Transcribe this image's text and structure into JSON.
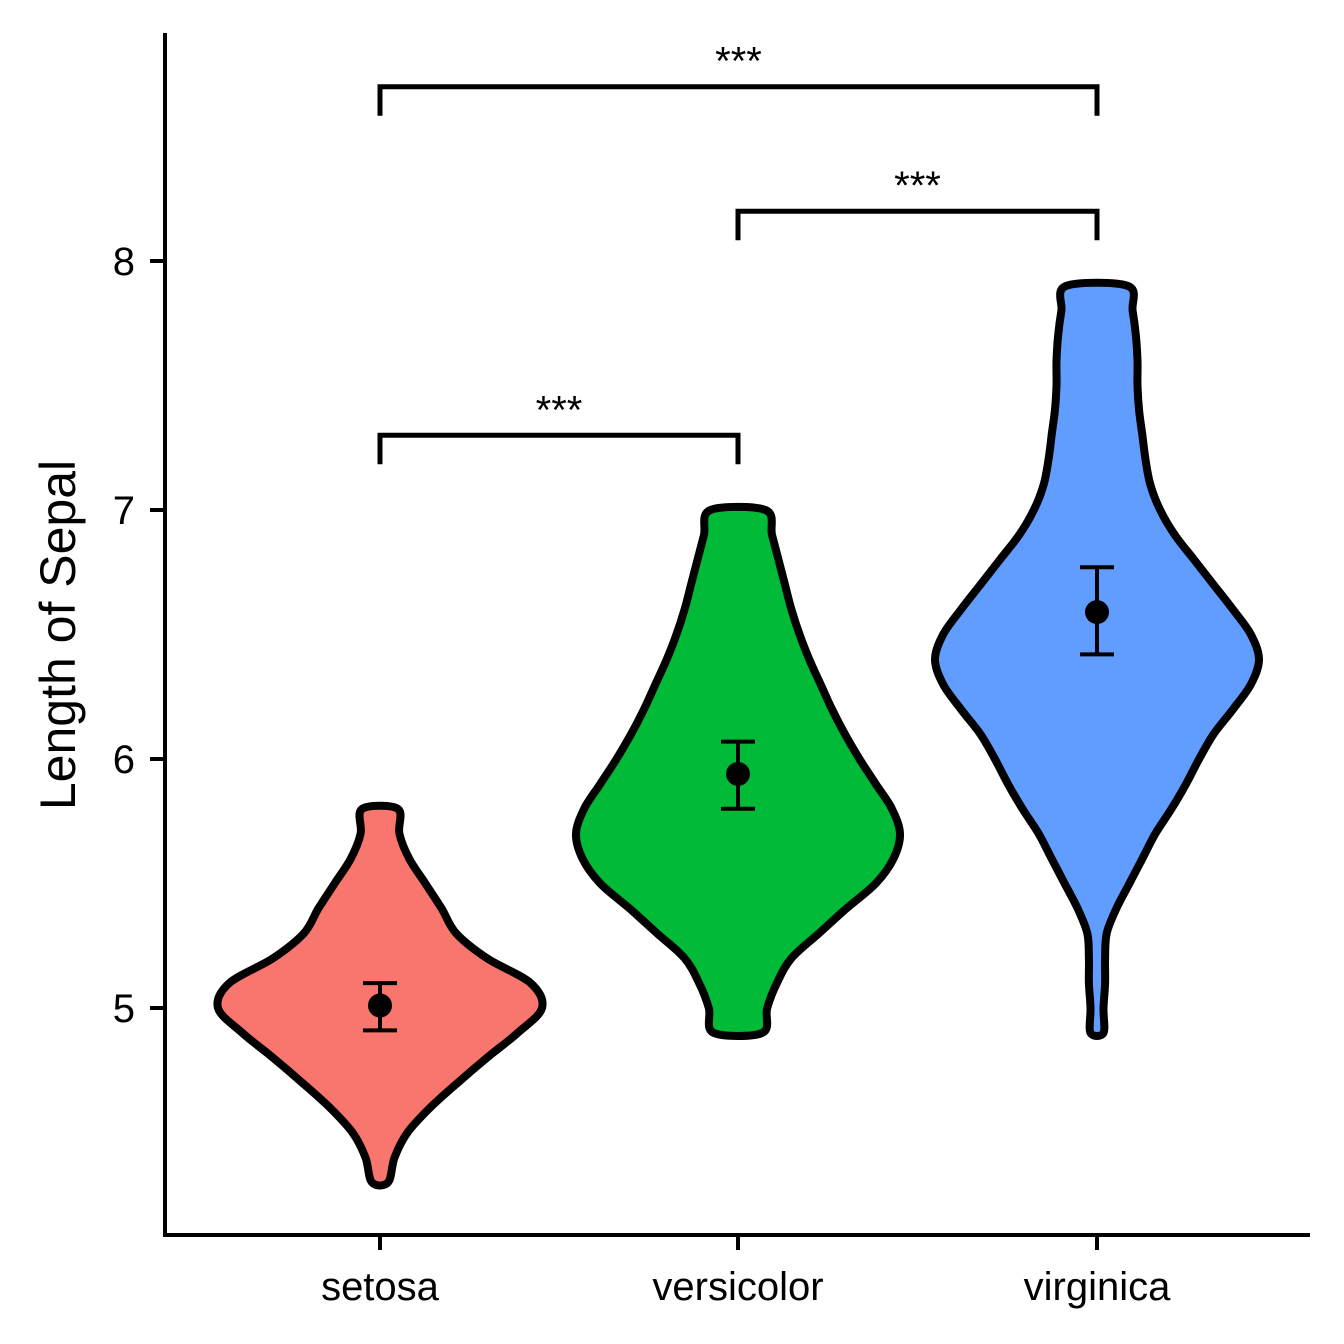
{
  "chart_data": {
    "type": "violin",
    "title": "",
    "xlabel": "",
    "ylabel": "Length of Sepal",
    "ylim": [
      4.2,
      9.1
    ],
    "yticks": [
      5,
      6,
      7,
      8
    ],
    "ytick_labels": [
      "5",
      "6",
      "7",
      "8"
    ],
    "grid": false,
    "legend": "none",
    "categories": [
      "setosa",
      "versicolor",
      "virginica"
    ],
    "groups": [
      {
        "name": "setosa",
        "color": "#F8766D",
        "min": 4.3,
        "max": 5.8,
        "mean": 5.01,
        "ci_low": 4.91,
        "ci_high": 5.1,
        "density": [
          [
            4.3,
            0.05
          ],
          [
            4.4,
            0.09
          ],
          [
            4.5,
            0.17
          ],
          [
            4.6,
            0.31
          ],
          [
            4.7,
            0.48
          ],
          [
            4.8,
            0.66
          ],
          [
            4.9,
            0.85
          ],
          [
            5.0,
            1.0
          ],
          [
            5.1,
            0.93
          ],
          [
            5.2,
            0.66
          ],
          [
            5.3,
            0.47
          ],
          [
            5.4,
            0.38
          ],
          [
            5.5,
            0.28
          ],
          [
            5.6,
            0.18
          ],
          [
            5.7,
            0.12
          ],
          [
            5.8,
            0.11
          ]
        ]
      },
      {
        "name": "versicolor",
        "color": "#00BA38",
        "min": 4.9,
        "max": 7.0,
        "mean": 5.94,
        "ci_low": 5.8,
        "ci_high": 6.07,
        "density": [
          [
            4.9,
            0.15
          ],
          [
            5.0,
            0.18
          ],
          [
            5.1,
            0.24
          ],
          [
            5.2,
            0.33
          ],
          [
            5.3,
            0.5
          ],
          [
            5.4,
            0.67
          ],
          [
            5.5,
            0.85
          ],
          [
            5.6,
            0.96
          ],
          [
            5.7,
            1.0
          ],
          [
            5.8,
            0.95
          ],
          [
            5.9,
            0.85
          ],
          [
            6.0,
            0.75
          ],
          [
            6.1,
            0.66
          ],
          [
            6.2,
            0.58
          ],
          [
            6.3,
            0.51
          ],
          [
            6.4,
            0.44
          ],
          [
            6.5,
            0.38
          ],
          [
            6.6,
            0.33
          ],
          [
            6.7,
            0.29
          ],
          [
            6.8,
            0.25
          ],
          [
            6.9,
            0.21
          ],
          [
            7.0,
            0.17
          ]
        ]
      },
      {
        "name": "virginica",
        "color": "#619CFF",
        "min": 4.9,
        "max": 7.9,
        "mean": 6.59,
        "ci_low": 6.42,
        "ci_high": 6.77,
        "density": [
          [
            4.9,
            0.04
          ],
          [
            5.0,
            0.04
          ],
          [
            5.1,
            0.05
          ],
          [
            5.2,
            0.05
          ],
          [
            5.3,
            0.06
          ],
          [
            5.4,
            0.12
          ],
          [
            5.5,
            0.2
          ],
          [
            5.6,
            0.28
          ],
          [
            5.7,
            0.36
          ],
          [
            5.8,
            0.46
          ],
          [
            5.9,
            0.55
          ],
          [
            6.0,
            0.63
          ],
          [
            6.1,
            0.72
          ],
          [
            6.2,
            0.84
          ],
          [
            6.3,
            0.95
          ],
          [
            6.4,
            1.0
          ],
          [
            6.5,
            0.95
          ],
          [
            6.6,
            0.84
          ],
          [
            6.7,
            0.72
          ],
          [
            6.8,
            0.6
          ],
          [
            6.9,
            0.48
          ],
          [
            7.0,
            0.39
          ],
          [
            7.1,
            0.33
          ],
          [
            7.2,
            0.3
          ],
          [
            7.3,
            0.28
          ],
          [
            7.4,
            0.26
          ],
          [
            7.5,
            0.25
          ],
          [
            7.6,
            0.25
          ],
          [
            7.7,
            0.24
          ],
          [
            7.8,
            0.22
          ],
          [
            7.9,
            0.19
          ]
        ]
      }
    ],
    "comparisons": [
      {
        "from": "setosa",
        "to": "versicolor",
        "y": 7.3,
        "label": "***"
      },
      {
        "from": "versicolor",
        "to": "virginica",
        "y": 8.2,
        "label": "***"
      },
      {
        "from": "setosa",
        "to": "virginica",
        "y": 8.7,
        "label": "***"
      }
    ]
  }
}
